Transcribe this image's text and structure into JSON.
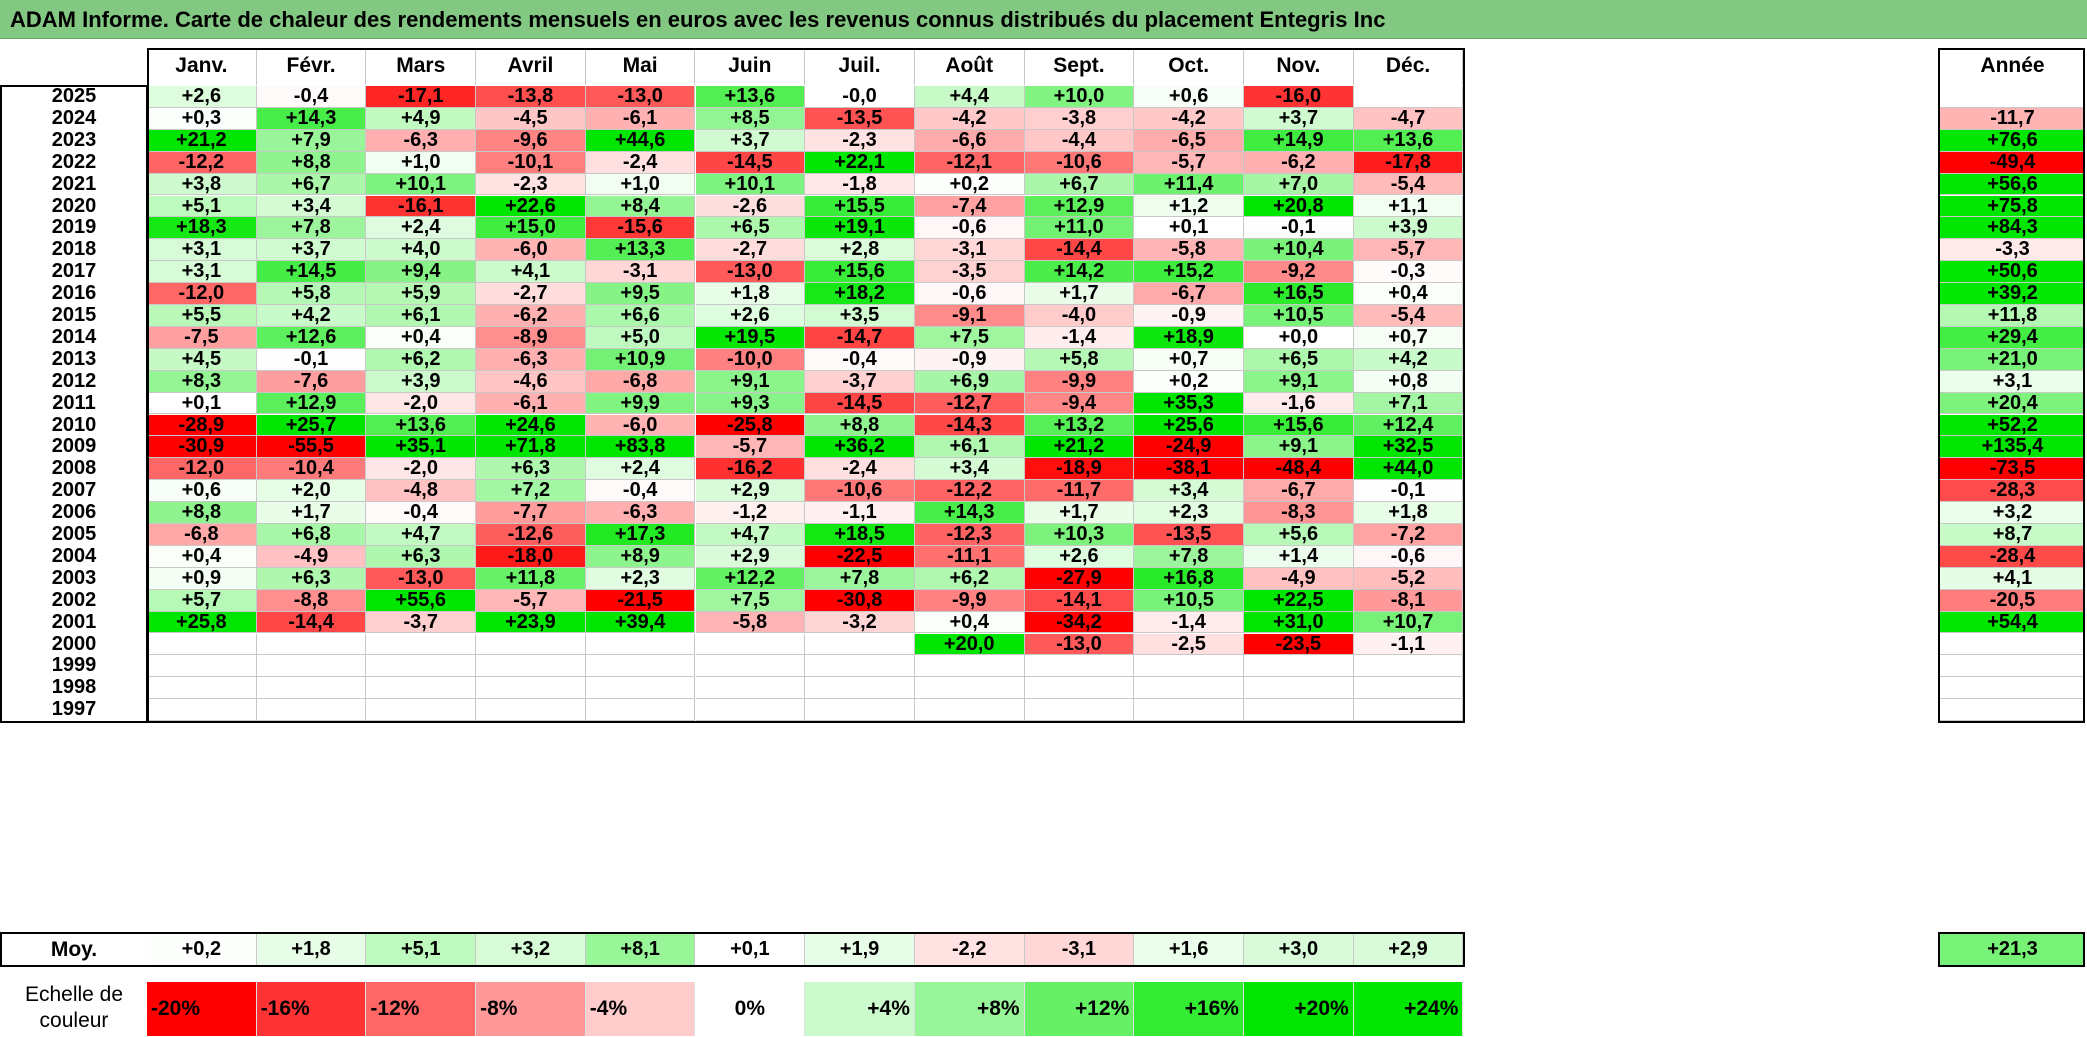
{
  "title": "ADAM Informe. Carte de chaleur des rendements mensuels en euros avec les revenus connus distribués du placement Entegris Inc",
  "chart_data": {
    "type": "heatmap",
    "months": [
      "Janv.",
      "Févr.",
      "Mars",
      "Avril",
      "Mai",
      "Juin",
      "Juil.",
      "Août",
      "Sept.",
      "Oct.",
      "Nov.",
      "Déc."
    ],
    "year_label": "Année",
    "rows": [
      {
        "year": "2025",
        "values": [
          "+2,6",
          "-0,4",
          "-17,1",
          "-13,8",
          "-13,0",
          "+13,6",
          "-0,0",
          "+4,4",
          "+10,0",
          "+0,6",
          "-16,0",
          ""
        ],
        "annual": ""
      },
      {
        "year": "2024",
        "values": [
          "+0,3",
          "+14,3",
          "+4,9",
          "-4,5",
          "-6,1",
          "+8,5",
          "-13,5",
          "-4,2",
          "-3,8",
          "-4,2",
          "+3,7",
          "-4,7"
        ],
        "annual": "-11,7"
      },
      {
        "year": "2023",
        "values": [
          "+21,2",
          "+7,9",
          "-6,3",
          "-9,6",
          "+44,6",
          "+3,7",
          "-2,3",
          "-6,6",
          "-4,4",
          "-6,5",
          "+14,9",
          "+13,6"
        ],
        "annual": "+76,6"
      },
      {
        "year": "2022",
        "values": [
          "-12,2",
          "+8,8",
          "+1,0",
          "-10,1",
          "-2,4",
          "-14,5",
          "+22,1",
          "-12,1",
          "-10,6",
          "-5,7",
          "-6,2",
          "-17,8"
        ],
        "annual": "-49,4"
      },
      {
        "year": "2021",
        "values": [
          "+3,8",
          "+6,7",
          "+10,1",
          "-2,3",
          "+1,0",
          "+10,1",
          "-1,8",
          "+0,2",
          "+6,7",
          "+11,4",
          "+7,0",
          "-5,4"
        ],
        "annual": "+56,6"
      },
      {
        "year": "2020",
        "values": [
          "+5,1",
          "+3,4",
          "-16,1",
          "+22,6",
          "+8,4",
          "-2,6",
          "+15,5",
          "-7,4",
          "+12,9",
          "+1,2",
          "+20,8",
          "+1,1"
        ],
        "annual": "+75,8"
      },
      {
        "year": "2019",
        "values": [
          "+18,3",
          "+7,8",
          "+2,4",
          "+15,0",
          "-15,6",
          "+6,5",
          "+19,1",
          "-0,6",
          "+11,0",
          "+0,1",
          "-0,1",
          "+3,9"
        ],
        "annual": "+84,3"
      },
      {
        "year": "2018",
        "values": [
          "+3,1",
          "+3,7",
          "+4,0",
          "-6,0",
          "+13,3",
          "-2,7",
          "+2,8",
          "-3,1",
          "-14,4",
          "-5,8",
          "+10,4",
          "-5,7"
        ],
        "annual": "-3,3"
      },
      {
        "year": "2017",
        "values": [
          "+3,1",
          "+14,5",
          "+9,4",
          "+4,1",
          "-3,1",
          "-13,0",
          "+15,6",
          "-3,5",
          "+14,2",
          "+15,2",
          "-9,2",
          "-0,3"
        ],
        "annual": "+50,6"
      },
      {
        "year": "2016",
        "values": [
          "-12,0",
          "+5,8",
          "+5,9",
          "-2,7",
          "+9,5",
          "+1,8",
          "+18,2",
          "-0,6",
          "+1,7",
          "-6,7",
          "+16,5",
          "+0,4"
        ],
        "annual": "+39,2"
      },
      {
        "year": "2015",
        "values": [
          "+5,5",
          "+4,2",
          "+6,1",
          "-6,2",
          "+6,6",
          "+2,6",
          "+3,5",
          "-9,1",
          "-4,0",
          "-0,9",
          "+10,5",
          "-5,4"
        ],
        "annual": "+11,8"
      },
      {
        "year": "2014",
        "values": [
          "-7,5",
          "+12,6",
          "+0,4",
          "-8,9",
          "+5,0",
          "+19,5",
          "-14,7",
          "+7,5",
          "-1,4",
          "+18,9",
          "+0,0",
          "+0,7"
        ],
        "annual": "+29,4"
      },
      {
        "year": "2013",
        "values": [
          "+4,5",
          "-0,1",
          "+6,2",
          "-6,3",
          "+10,9",
          "-10,0",
          "-0,4",
          "-0,9",
          "+5,8",
          "+0,7",
          "+6,5",
          "+4,2"
        ],
        "annual": "+21,0"
      },
      {
        "year": "2012",
        "values": [
          "+8,3",
          "-7,6",
          "+3,9",
          "-4,6",
          "-6,8",
          "+9,1",
          "-3,7",
          "+6,9",
          "-9,9",
          "+0,2",
          "+9,1",
          "+0,8"
        ],
        "annual": "+3,1"
      },
      {
        "year": "2011",
        "values": [
          "+0,1",
          "+12,9",
          "-2,0",
          "-6,1",
          "+9,9",
          "+9,3",
          "-14,5",
          "-12,7",
          "-9,4",
          "+35,3",
          "-1,6",
          "+7,1"
        ],
        "annual": "+20,4"
      },
      {
        "year": "2010",
        "values": [
          "-28,9",
          "+25,7",
          "+13,6",
          "+24,6",
          "-6,0",
          "-25,8",
          "+8,8",
          "-14,3",
          "+13,2",
          "+25,6",
          "+15,6",
          "+12,4"
        ],
        "annual": "+52,2"
      },
      {
        "year": "2009",
        "values": [
          "-30,9",
          "-55,5",
          "+35,1",
          "+71,8",
          "+83,8",
          "-5,7",
          "+36,2",
          "+6,1",
          "+21,2",
          "-24,9",
          "+9,1",
          "+32,5"
        ],
        "annual": "+135,4"
      },
      {
        "year": "2008",
        "values": [
          "-12,0",
          "-10,4",
          "-2,0",
          "+6,3",
          "+2,4",
          "-16,2",
          "-2,4",
          "+3,4",
          "-18,9",
          "-38,1",
          "-48,4",
          "+44,0"
        ],
        "annual": "-73,5"
      },
      {
        "year": "2007",
        "values": [
          "+0,6",
          "+2,0",
          "-4,8",
          "+7,2",
          "-0,4",
          "+2,9",
          "-10,6",
          "-12,2",
          "-11,7",
          "+3,4",
          "-6,7",
          "-0,1"
        ],
        "annual": "-28,3"
      },
      {
        "year": "2006",
        "values": [
          "+8,8",
          "+1,7",
          "-0,4",
          "-7,7",
          "-6,3",
          "-1,2",
          "-1,1",
          "+14,3",
          "+1,7",
          "+2,3",
          "-8,3",
          "+1,8"
        ],
        "annual": "+3,2"
      },
      {
        "year": "2005",
        "values": [
          "-6,8",
          "+6,8",
          "+4,7",
          "-12,6",
          "+17,3",
          "+4,7",
          "+18,5",
          "-12,3",
          "+10,3",
          "-13,5",
          "+5,6",
          "-7,2"
        ],
        "annual": "+8,7"
      },
      {
        "year": "2004",
        "values": [
          "+0,4",
          "-4,9",
          "+6,3",
          "-18,0",
          "+8,9",
          "+2,9",
          "-22,5",
          "-11,1",
          "+2,6",
          "+7,8",
          "+1,4",
          "-0,6"
        ],
        "annual": "-28,4"
      },
      {
        "year": "2003",
        "values": [
          "+0,9",
          "+6,3",
          "-13,0",
          "+11,8",
          "+2,3",
          "+12,2",
          "+7,8",
          "+6,2",
          "-27,9",
          "+16,8",
          "-4,9",
          "-5,2"
        ],
        "annual": "+4,1"
      },
      {
        "year": "2002",
        "values": [
          "+5,7",
          "-8,8",
          "+55,6",
          "-5,7",
          "-21,5",
          "+7,5",
          "-30,8",
          "-9,9",
          "-14,1",
          "+10,5",
          "+22,5",
          "-8,1"
        ],
        "annual": "-20,5"
      },
      {
        "year": "2001",
        "values": [
          "+25,8",
          "-14,4",
          "-3,7",
          "+23,9",
          "+39,4",
          "-5,8",
          "-3,2",
          "+0,4",
          "-34,2",
          "-1,4",
          "+31,0",
          "+10,7"
        ],
        "annual": "+54,4"
      },
      {
        "year": "2000",
        "values": [
          "",
          "",
          "",
          "",
          "",
          "",
          "",
          "+20,0",
          "-13,0",
          "-2,5",
          "-23,5",
          "-1,1"
        ],
        "annual": ""
      },
      {
        "year": "1999",
        "values": [
          "",
          "",
          "",
          "",
          "",
          "",
          "",
          "",
          "",
          "",
          "",
          ""
        ],
        "annual": ""
      },
      {
        "year": "1998",
        "values": [
          "",
          "",
          "",
          "",
          "",
          "",
          "",
          "",
          "",
          "",
          "",
          ""
        ],
        "annual": ""
      },
      {
        "year": "1997",
        "values": [
          "",
          "",
          "",
          "",
          "",
          "",
          "",
          "",
          "",
          "",
          "",
          ""
        ],
        "annual": ""
      }
    ],
    "average": {
      "label": "Moy.",
      "values": [
        "+0,2",
        "+1,8",
        "+5,1",
        "+3,2",
        "+8,1",
        "+0,1",
        "+1,9",
        "-2,2",
        "-3,1",
        "+1,6",
        "+3,0",
        "+2,9"
      ],
      "annual": "+21,3"
    },
    "color_scale": {
      "label_line1": "Echelle de",
      "label_line2": "couleur",
      "steps": [
        {
          "label": "-20%",
          "value": -20
        },
        {
          "label": "-16%",
          "value": -16
        },
        {
          "label": "-12%",
          "value": -12
        },
        {
          "label": "-8%",
          "value": -8
        },
        {
          "label": "-4%",
          "value": -4
        },
        {
          "label": "0%",
          "value": 0
        },
        {
          "label": "+4%",
          "value": 4
        },
        {
          "label": "+8%",
          "value": 8
        },
        {
          "label": "+12%",
          "value": 12
        },
        {
          "label": "+16%",
          "value": 16
        },
        {
          "label": "+20%",
          "value": 20
        },
        {
          "label": "+24%",
          "value": 24
        }
      ]
    },
    "colors": {
      "negative_max": "#ff0000",
      "neutral": "#ffffff",
      "positive_max": "#00e000",
      "title_bar": "#82c882"
    }
  }
}
